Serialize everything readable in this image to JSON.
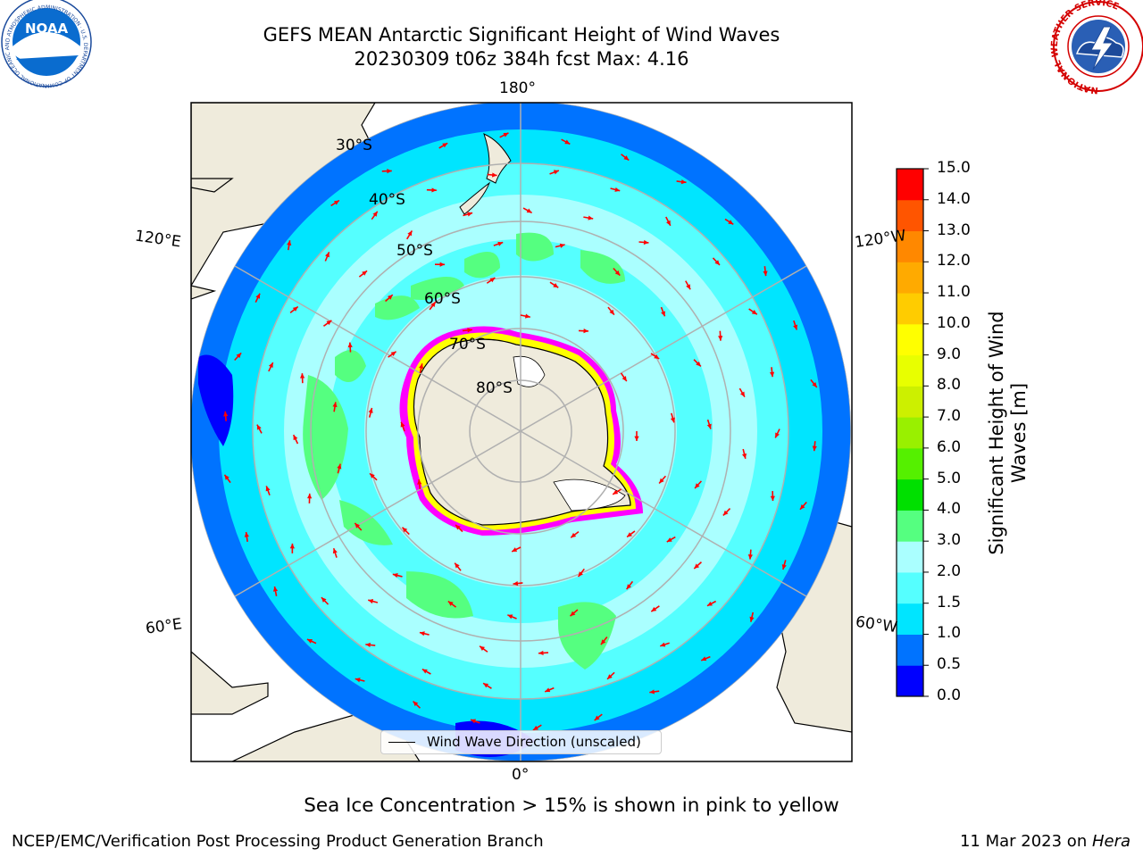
{
  "title": {
    "line1": "GEFS MEAN Antarctic Significant Height of Wind Waves",
    "line2": "20230309 t06z 384h fcst   Max: 4.16"
  },
  "logos": {
    "left": {
      "name": "noaa-logo",
      "text": "NOAA",
      "ring_text": "NATIONAL OCEANIC AND ATMOSPHERIC ADMINISTRATION · U.S. DEPARTMENT OF COMMERCE"
    },
    "right": {
      "name": "nws-logo",
      "ring_text": "NATIONAL WEATHER SERVICE"
    }
  },
  "map": {
    "projection": "south-polar-stereographic",
    "longitude_labels": [
      "180°",
      "120°E",
      "120°W",
      "60°E",
      "60°W",
      "0°"
    ],
    "latitude_labels": [
      "30°S",
      "40°S",
      "50°S",
      "60°S",
      "70°S",
      "80°S"
    ],
    "legend_label": "Wind Wave Direction (unscaled)",
    "land_color": "#efebdc",
    "arrow_color": "#ff0000",
    "sea_ice_colors": [
      "#ff00ff",
      "#ffff00",
      "#ffffff"
    ]
  },
  "colorbar": {
    "title": "Significant Height of Wind Waves [m]",
    "ticks": [
      "0.0",
      "0.5",
      "1.0",
      "1.5",
      "2.0",
      "3.0",
      "4.0",
      "5.0",
      "6.0",
      "7.0",
      "8.0",
      "9.0",
      "10.0",
      "11.0",
      "12.0",
      "13.0",
      "14.0",
      "15.0"
    ],
    "colors": [
      "#0000ff",
      "#0073ff",
      "#00e5ff",
      "#55ffff",
      "#aaffff",
      "#55ff80",
      "#00e000",
      "#55f000",
      "#99f000",
      "#ccf000",
      "#e8ff00",
      "#ffff00",
      "#ffcc00",
      "#ffaa00",
      "#ff8800",
      "#ff5500",
      "#ff0000"
    ]
  },
  "caption": "Sea Ice Concentration > 15% is shown in pink to yellow",
  "footer": {
    "left": "NCEP/EMC/Verification Post Processing Product Generation Branch",
    "right_date": "11 Mar 2023 on ",
    "right_host": "Hera"
  }
}
